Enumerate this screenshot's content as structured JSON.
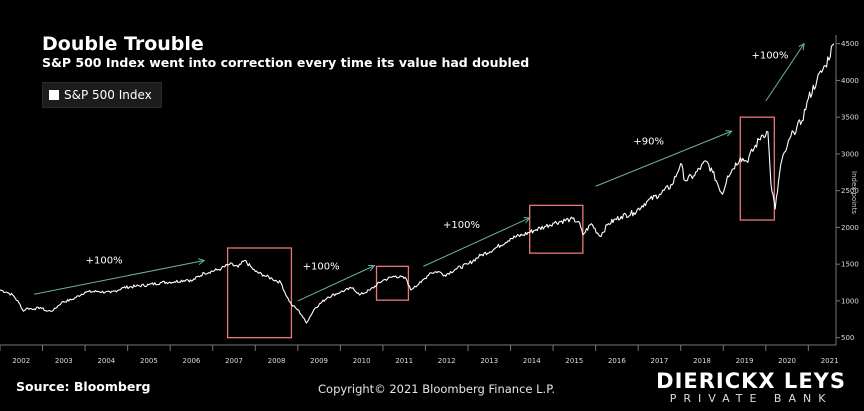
{
  "title": "Double Trouble",
  "subtitle": "S&P 500 Index went into correction every time its value had doubled",
  "legend_label": "S&P 500 Index",
  "source": "Source: Bloomberg",
  "copyright": "Copyright© 2021 Bloomberg Finance L.P.",
  "brand": {
    "name": "DIERICKX LEYS",
    "tagline": "PRIVATE BANK"
  },
  "chart_data": {
    "type": "line",
    "title": "Double Trouble",
    "subtitle": "S&P 500 Index went into correction every time its value had doubled",
    "ylabel": "Index points",
    "xlim": [
      2002.0,
      2021.65
    ],
    "ylim": [
      400,
      4550
    ],
    "y_ticks": [
      500,
      1000,
      1500,
      2000,
      2500,
      3000,
      3500,
      4000,
      4500
    ],
    "x_tick_labels": [
      "2002",
      "2003",
      "2004",
      "2005",
      "2006",
      "2007",
      "2008",
      "2009",
      "2010",
      "2011",
      "2012",
      "2013",
      "2014",
      "2015",
      "2016",
      "2017",
      "2018",
      "2019",
      "2020",
      "2021"
    ],
    "grid": false,
    "legend": "top-left",
    "line_color": "#ffffff",
    "series": [
      {
        "name": "S&P 500 Index",
        "x": [
          2002.0,
          2002.15,
          2002.3,
          2002.45,
          2002.55,
          2002.62,
          2002.8,
          2002.95,
          2003.1,
          2003.25,
          2003.45,
          2003.7,
          2004.0,
          2004.3,
          2004.6,
          2004.9,
          2005.2,
          2005.5,
          2005.8,
          2006.1,
          2006.4,
          2006.5,
          2006.8,
          2007.1,
          2007.2,
          2007.4,
          2007.6,
          2007.75,
          2008.0,
          2008.2,
          2008.4,
          2008.6,
          2008.75,
          2008.85,
          2009.0,
          2009.1,
          2009.2,
          2009.4,
          2009.7,
          2010.0,
          2010.3,
          2010.45,
          2010.7,
          2011.0,
          2011.3,
          2011.55,
          2011.65,
          2011.75,
          2011.9,
          2012.1,
          2012.3,
          2012.45,
          2012.7,
          2013.0,
          2013.3,
          2013.6,
          2014.0,
          2014.3,
          2014.6,
          2014.8,
          2015.0,
          2015.4,
          2015.6,
          2015.7,
          2015.9,
          2016.1,
          2016.3,
          2016.6,
          2016.9,
          2017.2,
          2017.5,
          2017.8,
          2018.0,
          2018.1,
          2018.3,
          2018.6,
          2018.75,
          2018.98,
          2019.1,
          2019.4,
          2019.55,
          2019.9,
          2020.05,
          2020.12,
          2020.22,
          2020.35,
          2020.5,
          2020.65,
          2020.85,
          2021.0,
          2021.2,
          2021.4,
          2021.6
        ],
        "y": [
          1150,
          1120,
          1080,
          970,
          860,
          900,
          890,
          910,
          860,
          870,
          980,
          1020,
          1120,
          1130,
          1110,
          1180,
          1200,
          1220,
          1250,
          1260,
          1290,
          1270,
          1380,
          1420,
          1440,
          1500,
          1460,
          1550,
          1400,
          1350,
          1300,
          1250,
          1050,
          950,
          880,
          800,
          700,
          900,
          1050,
          1120,
          1180,
          1080,
          1150,
          1280,
          1340,
          1300,
          1150,
          1200,
          1250,
          1380,
          1400,
          1350,
          1430,
          1500,
          1620,
          1700,
          1850,
          1900,
          1970,
          2010,
          2060,
          2110,
          2080,
          1900,
          2050,
          1880,
          2050,
          2150,
          2200,
          2350,
          2450,
          2580,
          2870,
          2640,
          2700,
          2900,
          2750,
          2450,
          2700,
          2950,
          2900,
          3250,
          3300,
          2600,
          2250,
          2850,
          3100,
          3300,
          3450,
          3750,
          4000,
          4200,
          4500
        ]
      }
    ],
    "annotations": [
      {
        "text": "+100%",
        "arrow_from": [
          2002.8,
          1090
        ],
        "arrow_to": [
          2006.8,
          1550
        ]
      },
      {
        "text": "+100%",
        "arrow_from": [
          2009.0,
          1000
        ],
        "arrow_to": [
          2010.8,
          1480
        ]
      },
      {
        "text": "+100%",
        "arrow_from": [
          2011.95,
          1470
        ],
        "arrow_to": [
          2014.45,
          2130
        ]
      },
      {
        "text": "+90%",
        "arrow_from": [
          2016.0,
          2560
        ],
        "arrow_to": [
          2019.2,
          3310
        ]
      },
      {
        "text": "+100%",
        "arrow_from": [
          2020.0,
          3720
        ],
        "arrow_to": [
          2020.9,
          4500
        ]
      }
    ],
    "highlight_boxes": [
      {
        "x": [
          2007.35,
          2008.85
        ],
        "y": [
          500,
          1720
        ]
      },
      {
        "x": [
          2010.85,
          2011.6
        ],
        "y": [
          1010,
          1470
        ]
      },
      {
        "x": [
          2014.45,
          2015.7
        ],
        "y": [
          1650,
          2300
        ]
      },
      {
        "x": [
          2019.4,
          2020.2
        ],
        "y": [
          2100,
          3500
        ]
      }
    ],
    "highlight_color": "#e8787a",
    "arrow_color": "#6ab0a8"
  }
}
